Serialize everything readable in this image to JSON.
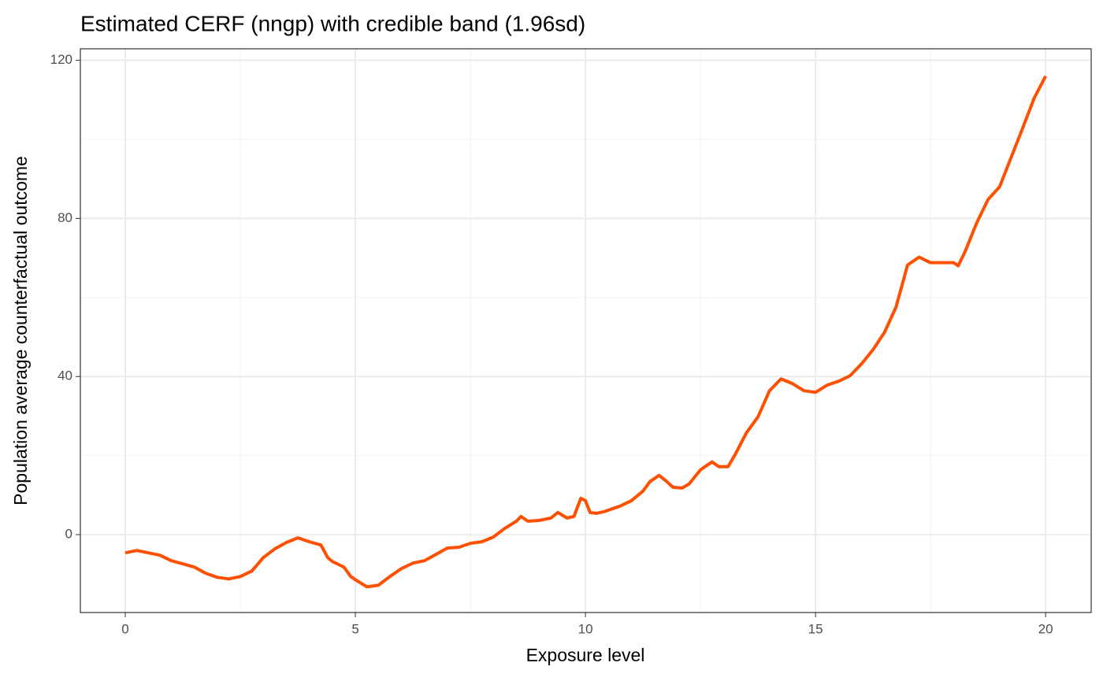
{
  "chart_data": {
    "type": "line",
    "title": "Estimated CERF (nngp) with credible band (1.96sd)",
    "x_label": "Exposure level",
    "y_label": "Population average counterfactual outcome",
    "x": [
      0,
      0.25,
      0.5,
      0.75,
      1.0,
      1.25,
      1.5,
      1.75,
      2.0,
      2.25,
      2.5,
      2.75,
      3.0,
      3.25,
      3.5,
      3.75,
      4.0,
      4.25,
      4.4,
      4.5,
      4.75,
      4.9,
      5.0,
      5.25,
      5.5,
      5.75,
      6.0,
      6.25,
      6.5,
      6.75,
      7.0,
      7.25,
      7.5,
      7.75,
      8.0,
      8.25,
      8.5,
      8.6,
      8.75,
      9.0,
      9.25,
      9.4,
      9.6,
      9.75,
      9.9,
      10.0,
      10.1,
      10.25,
      10.4,
      10.6,
      10.75,
      11.0,
      11.25,
      11.4,
      11.6,
      11.75,
      11.9,
      12.1,
      12.25,
      12.5,
      12.75,
      12.9,
      13.1,
      13.25,
      13.5,
      13.75,
      14.0,
      14.25,
      14.5,
      14.75,
      15.0,
      15.25,
      15.5,
      15.75,
      16.0,
      16.25,
      16.5,
      16.75,
      17.0,
      17.25,
      17.5,
      17.75,
      18.0,
      18.1,
      18.25,
      18.5,
      18.75,
      19.0,
      19.25,
      19.5,
      19.75,
      20.0
    ],
    "series": [
      {
        "color": "#ff4f00",
        "values": [
          -4.6,
          -4.0,
          -4.6,
          -5.2,
          -6.6,
          -7.4,
          -8.2,
          -9.8,
          -10.8,
          -11.2,
          -10.6,
          -9.2,
          -5.8,
          -3.6,
          -2.0,
          -0.8,
          -1.8,
          -2.6,
          -5.8,
          -6.8,
          -8.2,
          -10.6,
          -11.4,
          -13.2,
          -12.8,
          -10.6,
          -8.6,
          -7.2,
          -6.6,
          -5.0,
          -3.4,
          -3.2,
          -2.2,
          -1.8,
          -0.6,
          1.6,
          3.4,
          4.6,
          3.4,
          3.6,
          4.2,
          5.6,
          4.2,
          4.6,
          9.2,
          8.6,
          5.6,
          5.4,
          5.8,
          6.6,
          7.2,
          8.6,
          11.0,
          13.4,
          15.0,
          13.6,
          12.0,
          11.8,
          12.8,
          16.4,
          18.4,
          17.2,
          17.2,
          20.2,
          25.8,
          29.8,
          36.4,
          39.4,
          38.2,
          36.4,
          36.0,
          37.8,
          38.8,
          40.2,
          43.2,
          46.8,
          51.2,
          57.6,
          68.2,
          70.2,
          68.8,
          68.8,
          68.8,
          68.0,
          71.6,
          78.8,
          84.8,
          88.0,
          95.4,
          102.8,
          110.4,
          116.0
        ]
      }
    ],
    "xlim": [
      -0.976,
      20.99
    ],
    "ylim": [
      -19.7,
      122.9
    ],
    "xticks": [
      0,
      5,
      10,
      15,
      20
    ],
    "yticks": [
      0,
      40,
      80,
      120
    ],
    "x_minor_grid": [
      2.5,
      7.5,
      12.5,
      17.5
    ],
    "y_minor_grid": [
      20,
      60,
      100
    ],
    "grid": true
  }
}
